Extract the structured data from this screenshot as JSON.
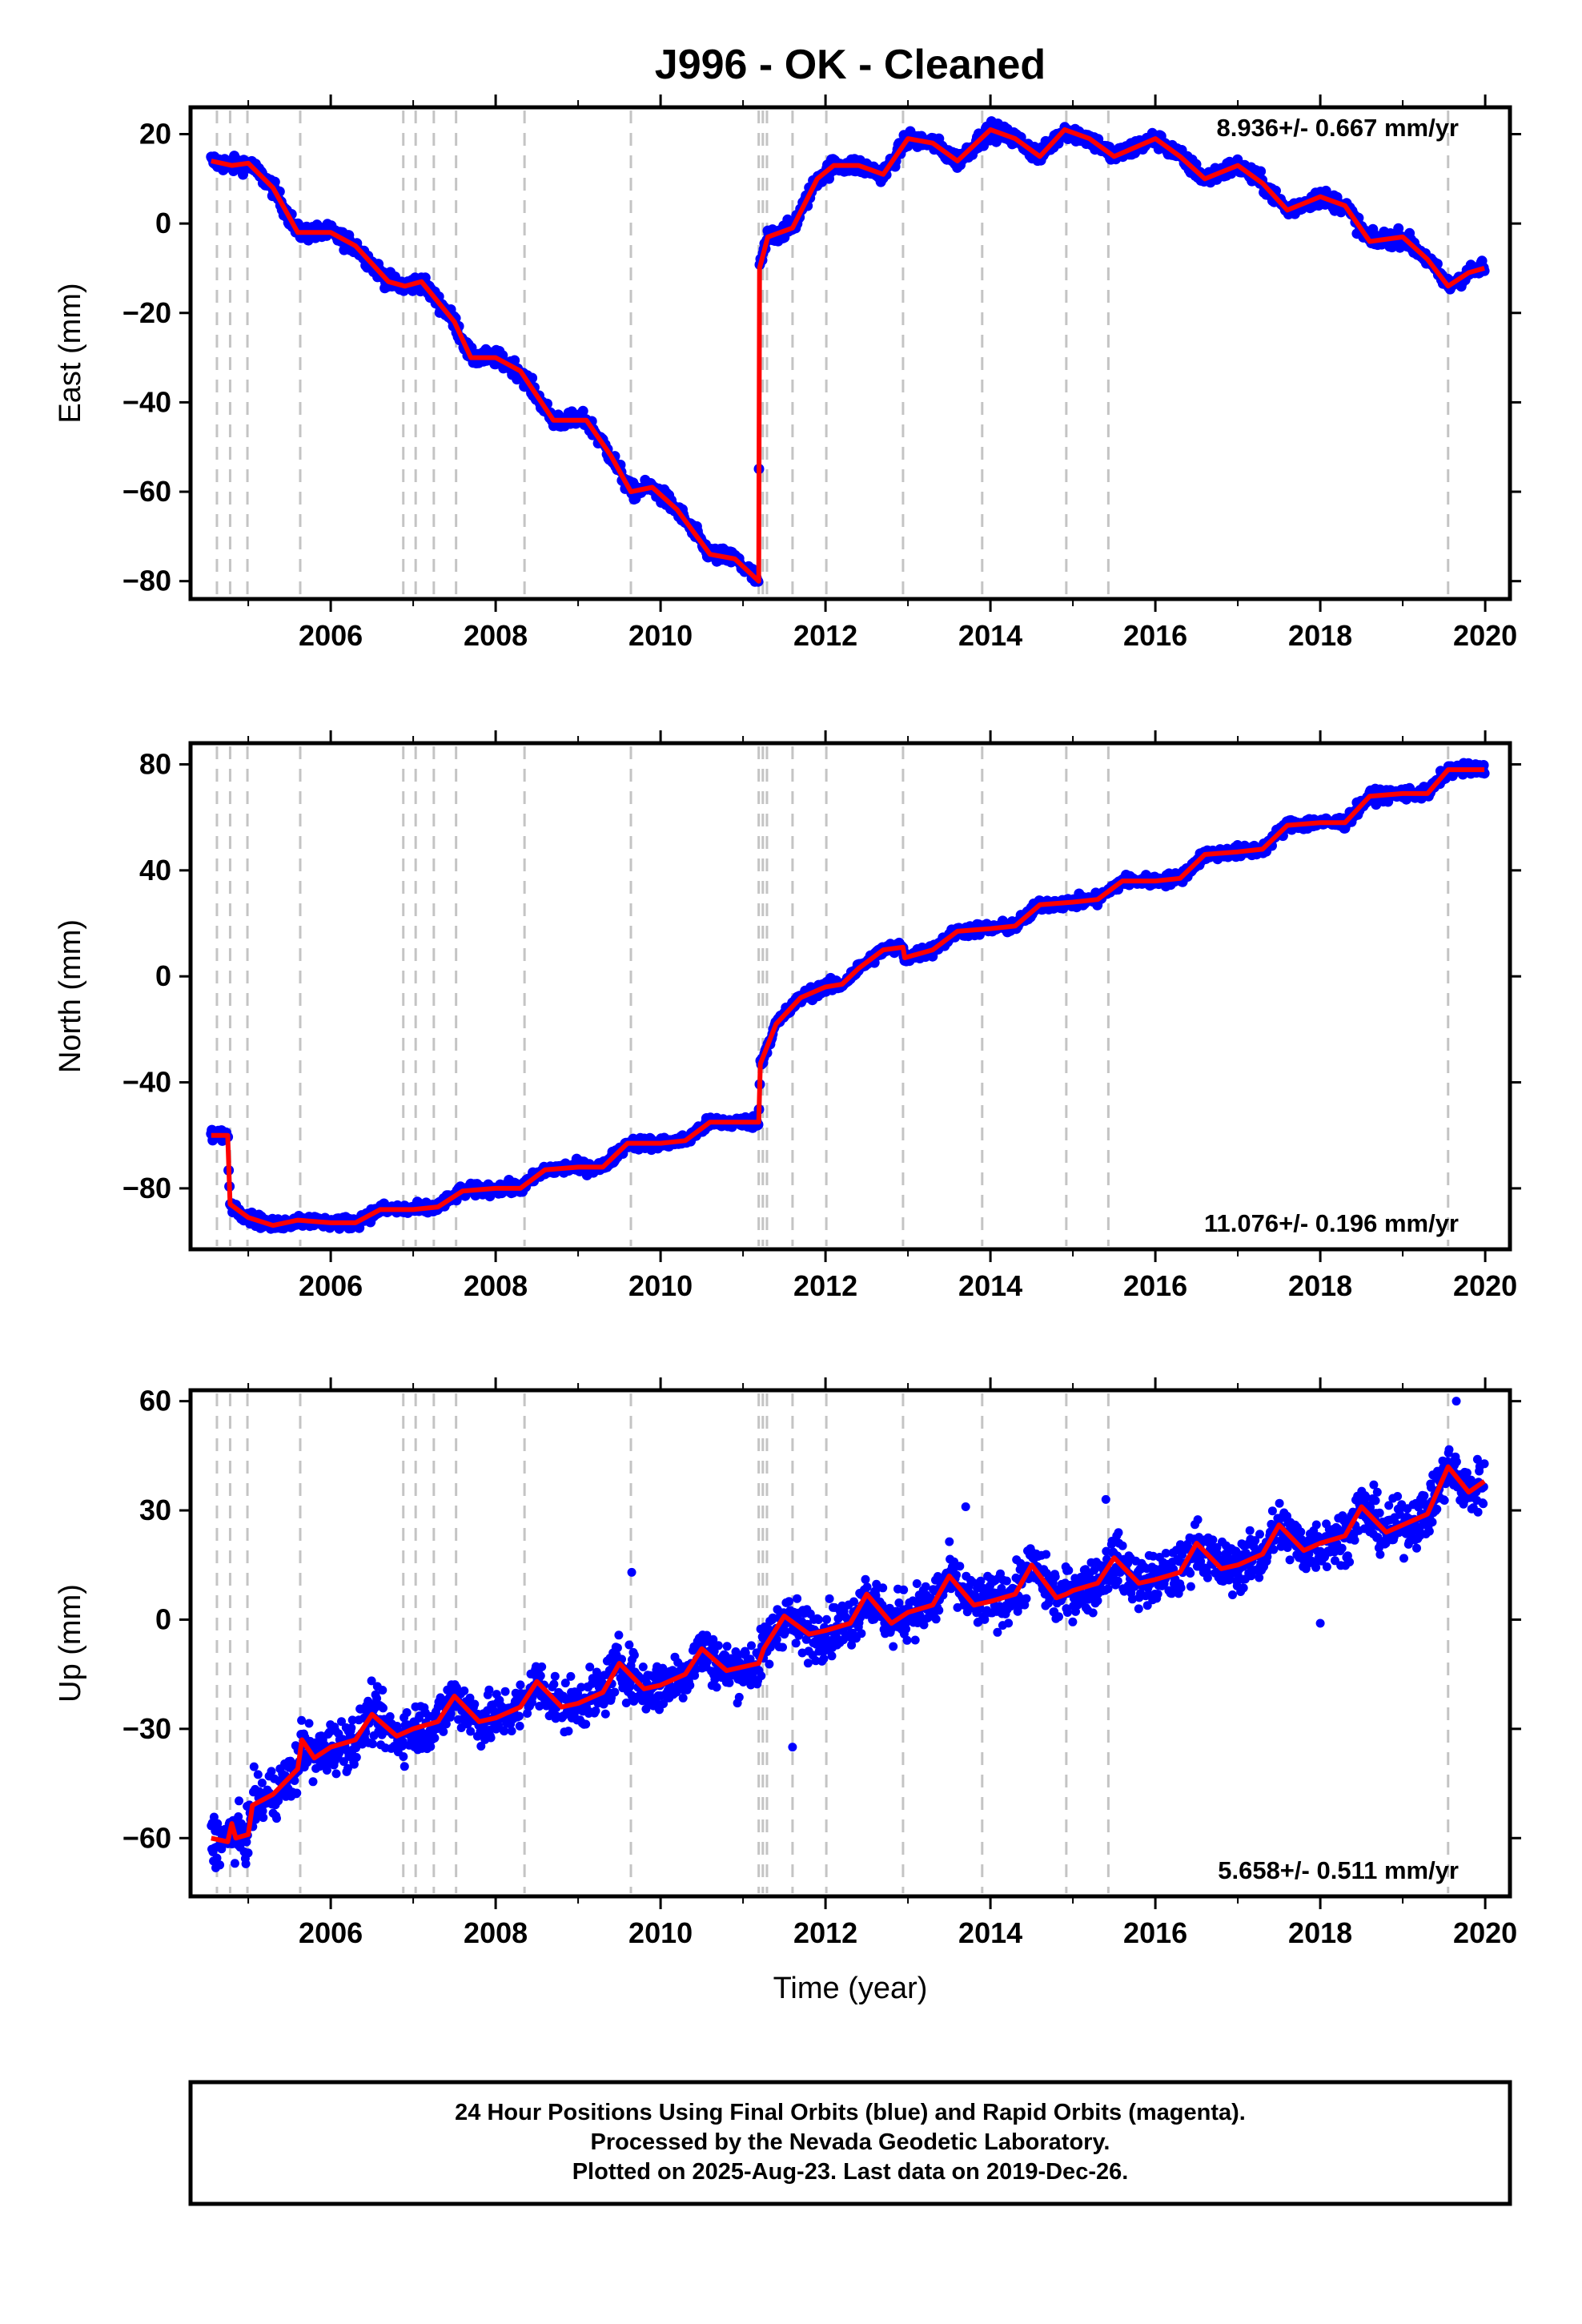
{
  "title": "J996  - OK - Cleaned",
  "xlabel": "Time (year)",
  "x_ticks": [
    2006,
    2008,
    2010,
    2012,
    2014,
    2016,
    2018,
    2020
  ],
  "colors": {
    "points": "#0000ff",
    "model": "#ff0000",
    "events": "#c4c4c4"
  },
  "event_lines": [
    2004.62,
    2004.78,
    2004.99,
    2005.63,
    2006.88,
    2007.03,
    2007.25,
    2007.52,
    2008.35,
    2009.64,
    2011.19,
    2011.24,
    2011.29,
    2011.6,
    2012.01,
    2012.94,
    2013.9,
    2014.92,
    2015.43,
    2019.55
  ],
  "footer": {
    "line1": "24 Hour Positions Using Final Orbits (blue) and Rapid Orbits (magenta).",
    "line2": "Processed by the Nevada Geodetic Laboratory.",
    "line3": "Plotted on 2025-Aug-23. Last data on 2019-Dec-26."
  },
  "chart_data": [
    {
      "type": "scatter",
      "ylabel": "East (mm)",
      "xlim": [
        2004.3,
        2020.3
      ],
      "ylim": [
        -84,
        26
      ],
      "y_ticks": [
        20,
        0,
        -20,
        -40,
        -60,
        -80
      ],
      "rate_text": "8.936+/- 0.667 mm/yr",
      "rate_position": "top-right",
      "noise": 1.3,
      "model": [
        [
          2004.55,
          14
        ],
        [
          2004.8,
          13
        ],
        [
          2005.0,
          13.5
        ],
        [
          2005.3,
          8
        ],
        [
          2005.6,
          -2
        ],
        [
          2006.0,
          -2
        ],
        [
          2006.3,
          -5
        ],
        [
          2006.7,
          -13
        ],
        [
          2006.9,
          -14
        ],
        [
          2007.1,
          -13
        ],
        [
          2007.5,
          -22
        ],
        [
          2007.7,
          -30
        ],
        [
          2008.0,
          -30
        ],
        [
          2008.3,
          -33
        ],
        [
          2008.7,
          -44
        ],
        [
          2009.1,
          -44
        ],
        [
          2009.4,
          -52
        ],
        [
          2009.64,
          -60
        ],
        [
          2009.9,
          -59
        ],
        [
          2010.2,
          -64
        ],
        [
          2010.6,
          -74
        ],
        [
          2010.9,
          -75
        ],
        [
          2011.19,
          -80
        ],
        [
          2011.2,
          -10
        ],
        [
          2011.3,
          -3
        ],
        [
          2011.6,
          -1
        ],
        [
          2011.9,
          10
        ],
        [
          2012.1,
          13
        ],
        [
          2012.4,
          13
        ],
        [
          2012.7,
          11
        ],
        [
          2013.0,
          19
        ],
        [
          2013.3,
          18
        ],
        [
          2013.6,
          14
        ],
        [
          2014.0,
          21
        ],
        [
          2014.3,
          19
        ],
        [
          2014.6,
          15
        ],
        [
          2014.9,
          21
        ],
        [
          2015.2,
          19
        ],
        [
          2015.5,
          15
        ],
        [
          2016.0,
          19
        ],
        [
          2016.3,
          15
        ],
        [
          2016.6,
          10
        ],
        [
          2017.0,
          13
        ],
        [
          2017.3,
          9
        ],
        [
          2017.6,
          3
        ],
        [
          2018.0,
          6
        ],
        [
          2018.3,
          4
        ],
        [
          2018.6,
          -4
        ],
        [
          2019.0,
          -3
        ],
        [
          2019.3,
          -8
        ],
        [
          2019.55,
          -14
        ],
        [
          2019.8,
          -11
        ],
        [
          2019.99,
          -10
        ]
      ]
    },
    {
      "type": "scatter",
      "ylabel": "North (mm)",
      "xlim": [
        2004.3,
        2020.3
      ],
      "ylim": [
        -103,
        88
      ],
      "y_ticks": [
        80,
        40,
        0,
        -40,
        -80
      ],
      "rate_text": "11.076+/- 0.196 mm/yr",
      "rate_position": "bottom-right",
      "noise": 1.6,
      "model": [
        [
          2004.55,
          -60
        ],
        [
          2004.75,
          -60
        ],
        [
          2004.78,
          -86
        ],
        [
          2005.0,
          -91
        ],
        [
          2005.3,
          -94
        ],
        [
          2005.6,
          -92
        ],
        [
          2006.0,
          -93
        ],
        [
          2006.3,
          -93
        ],
        [
          2006.6,
          -88
        ],
        [
          2007.0,
          -88
        ],
        [
          2007.3,
          -87
        ],
        [
          2007.6,
          -81
        ],
        [
          2008.0,
          -80
        ],
        [
          2008.3,
          -80
        ],
        [
          2008.6,
          -73
        ],
        [
          2009.0,
          -72
        ],
        [
          2009.3,
          -72
        ],
        [
          2009.6,
          -63
        ],
        [
          2010.0,
          -63
        ],
        [
          2010.3,
          -62
        ],
        [
          2010.6,
          -55
        ],
        [
          2011.19,
          -55
        ],
        [
          2011.21,
          -33
        ],
        [
          2011.4,
          -18
        ],
        [
          2011.7,
          -8
        ],
        [
          2012.0,
          -4
        ],
        [
          2012.2,
          -3
        ],
        [
          2012.4,
          3
        ],
        [
          2012.7,
          10
        ],
        [
          2012.94,
          11
        ],
        [
          2012.96,
          7
        ],
        [
          2013.3,
          10
        ],
        [
          2013.6,
          17
        ],
        [
          2014.0,
          18
        ],
        [
          2014.3,
          19
        ],
        [
          2014.6,
          27
        ],
        [
          2015.0,
          28
        ],
        [
          2015.3,
          29
        ],
        [
          2015.6,
          36
        ],
        [
          2016.0,
          36
        ],
        [
          2016.3,
          37
        ],
        [
          2016.6,
          46
        ],
        [
          2017.0,
          47
        ],
        [
          2017.3,
          48
        ],
        [
          2017.6,
          57
        ],
        [
          2018.0,
          58
        ],
        [
          2018.3,
          58
        ],
        [
          2018.6,
          68
        ],
        [
          2019.0,
          69
        ],
        [
          2019.3,
          69
        ],
        [
          2019.55,
          78
        ],
        [
          2019.99,
          78
        ]
      ]
    },
    {
      "type": "scatter",
      "ylabel": "Up (mm)",
      "xlim": [
        2004.3,
        2020.3
      ],
      "ylim": [
        -76,
        63
      ],
      "y_ticks": [
        60,
        30,
        0,
        -30,
        -60
      ],
      "rate_text": "5.658+/- 0.511 mm/yr",
      "rate_position": "bottom-right",
      "noise": 5,
      "model": [
        [
          2004.55,
          -60
        ],
        [
          2004.75,
          -61
        ],
        [
          2004.8,
          -56
        ],
        [
          2004.85,
          -60
        ],
        [
          2005.0,
          -59
        ],
        [
          2005.05,
          -51
        ],
        [
          2005.3,
          -48
        ],
        [
          2005.6,
          -41
        ],
        [
          2005.65,
          -33
        ],
        [
          2005.8,
          -38
        ],
        [
          2006.0,
          -35
        ],
        [
          2006.3,
          -33
        ],
        [
          2006.5,
          -26
        ],
        [
          2006.8,
          -32
        ],
        [
          2007.0,
          -30
        ],
        [
          2007.3,
          -28
        ],
        [
          2007.5,
          -21
        ],
        [
          2007.8,
          -28
        ],
        [
          2008.0,
          -27
        ],
        [
          2008.3,
          -24
        ],
        [
          2008.5,
          -17
        ],
        [
          2008.8,
          -24
        ],
        [
          2009.0,
          -23
        ],
        [
          2009.3,
          -20
        ],
        [
          2009.5,
          -12
        ],
        [
          2009.8,
          -19
        ],
        [
          2010.0,
          -18
        ],
        [
          2010.3,
          -15
        ],
        [
          2010.5,
          -8
        ],
        [
          2010.8,
          -14
        ],
        [
          2011.19,
          -12
        ],
        [
          2011.25,
          -8
        ],
        [
          2011.5,
          1
        ],
        [
          2011.8,
          -4
        ],
        [
          2012.0,
          -3
        ],
        [
          2012.3,
          -1
        ],
        [
          2012.5,
          7
        ],
        [
          2012.8,
          -1
        ],
        [
          2013.0,
          2
        ],
        [
          2013.3,
          4
        ],
        [
          2013.5,
          12
        ],
        [
          2013.8,
          4
        ],
        [
          2014.0,
          5
        ],
        [
          2014.3,
          7
        ],
        [
          2014.5,
          15
        ],
        [
          2014.8,
          6
        ],
        [
          2014.92,
          7
        ],
        [
          2015.0,
          8
        ],
        [
          2015.3,
          10
        ],
        [
          2015.5,
          17
        ],
        [
          2015.8,
          10
        ],
        [
          2016.0,
          11
        ],
        [
          2016.3,
          13
        ],
        [
          2016.5,
          21
        ],
        [
          2016.8,
          14
        ],
        [
          2017.0,
          15
        ],
        [
          2017.3,
          18
        ],
        [
          2017.5,
          26
        ],
        [
          2017.8,
          19
        ],
        [
          2018.0,
          21
        ],
        [
          2018.3,
          23
        ],
        [
          2018.5,
          31
        ],
        [
          2018.8,
          24
        ],
        [
          2019.0,
          26
        ],
        [
          2019.3,
          29
        ],
        [
          2019.55,
          42
        ],
        [
          2019.8,
          35
        ],
        [
          2019.99,
          38
        ]
      ]
    }
  ]
}
